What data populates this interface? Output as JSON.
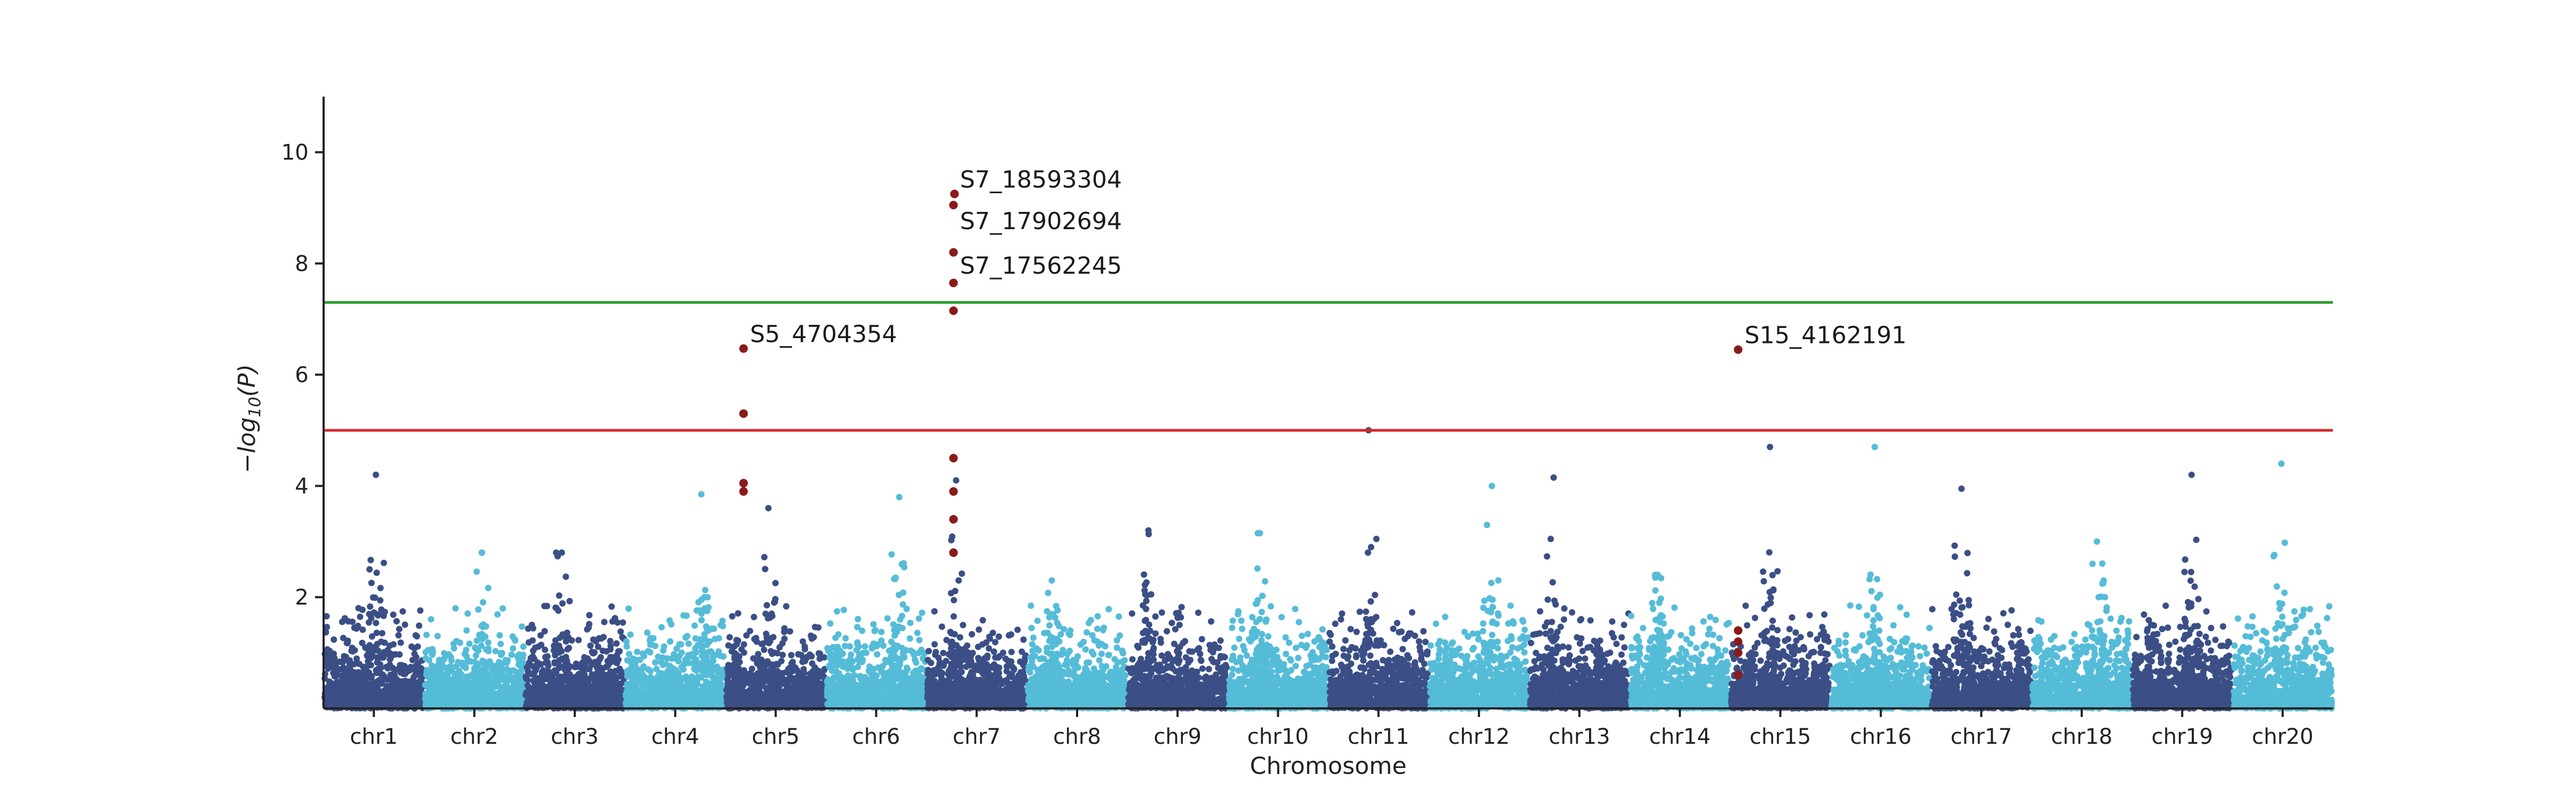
{
  "chart_data": {
    "type": "scatter",
    "subtype": "manhattan",
    "title": "",
    "xlabel": "Chromosome",
    "ylabel": "−log10(P)",
    "ylabel_parts": {
      "minus": "−",
      "log": "log",
      "sub": "10",
      "arg": "(P)"
    },
    "ylim": [
      0,
      11
    ],
    "yticks": [
      2,
      4,
      6,
      8,
      10
    ],
    "grid": false,
    "chromosomes": [
      "chr1",
      "chr2",
      "chr3",
      "chr4",
      "chr5",
      "chr6",
      "chr7",
      "chr8",
      "chr9",
      "chr10",
      "chr11",
      "chr12",
      "chr13",
      "chr14",
      "chr15",
      "chr16",
      "chr17",
      "chr18",
      "chr19",
      "chr20"
    ],
    "thresholds": [
      {
        "value": 7.3,
        "color": "#2ca02c"
      },
      {
        "value": 5.0,
        "color": "#d62728"
      }
    ],
    "colors": {
      "dark": "#3b4f86",
      "light": "#55bcd8",
      "highlight": "#8b1a1a",
      "axis": "#222222"
    },
    "peaks": [
      {
        "chr": 1,
        "ymax": 4.2,
        "highlight": false
      },
      {
        "chr": 2,
        "ymax": 2.8,
        "highlight": false
      },
      {
        "chr": 3,
        "ymax": 2.8,
        "highlight": false
      },
      {
        "chr": 4,
        "ymax": 3.85,
        "highlight": false
      },
      {
        "chr": 5,
        "ymax": 3.6,
        "highlight": false
      },
      {
        "chr": 6,
        "ymax": 3.8,
        "highlight": false
      },
      {
        "chr": 7,
        "ymax": 4.1,
        "highlight": false
      },
      {
        "chr": 8,
        "ymax": 2.3,
        "highlight": false
      },
      {
        "chr": 9,
        "ymax": 3.2,
        "highlight": false
      },
      {
        "chr": 10,
        "ymax": 3.15,
        "highlight": false
      },
      {
        "chr": 11,
        "ymax": 5.0,
        "highlight": false
      },
      {
        "chr": 12,
        "ymax": 4.0,
        "highlight": false
      },
      {
        "chr": 13,
        "ymax": 4.15,
        "highlight": false
      },
      {
        "chr": 14,
        "ymax": 2.4,
        "highlight": false
      },
      {
        "chr": 15,
        "ymax": 4.7,
        "highlight": false
      },
      {
        "chr": 16,
        "ymax": 4.7,
        "highlight": false
      },
      {
        "chr": 17,
        "ymax": 3.95,
        "highlight": false
      },
      {
        "chr": 18,
        "ymax": 3.0,
        "highlight": false
      },
      {
        "chr": 19,
        "ymax": 4.2,
        "highlight": false
      },
      {
        "chr": 20,
        "ymax": 4.4,
        "highlight": false
      }
    ],
    "highlighted_points": [
      {
        "chr": 5,
        "pos": 0.18,
        "y": 6.47
      },
      {
        "chr": 5,
        "pos": 0.18,
        "y": 5.3
      },
      {
        "chr": 5,
        "pos": 0.18,
        "y": 4.05
      },
      {
        "chr": 5,
        "pos": 0.18,
        "y": 3.9
      },
      {
        "chr": 7,
        "pos": 0.28,
        "y": 9.25
      },
      {
        "chr": 7,
        "pos": 0.27,
        "y": 9.05
      },
      {
        "chr": 7,
        "pos": 0.27,
        "y": 8.2
      },
      {
        "chr": 7,
        "pos": 0.27,
        "y": 7.65
      },
      {
        "chr": 7,
        "pos": 0.27,
        "y": 7.15
      },
      {
        "chr": 7,
        "pos": 0.27,
        "y": 4.5
      },
      {
        "chr": 7,
        "pos": 0.27,
        "y": 3.9
      },
      {
        "chr": 7,
        "pos": 0.27,
        "y": 3.4
      },
      {
        "chr": 7,
        "pos": 0.27,
        "y": 2.8
      },
      {
        "chr": 15,
        "pos": 0.08,
        "y": 6.45
      },
      {
        "chr": 15,
        "pos": 0.08,
        "y": 1.4
      },
      {
        "chr": 15,
        "pos": 0.08,
        "y": 1.2
      },
      {
        "chr": 15,
        "pos": 0.08,
        "y": 1.0
      },
      {
        "chr": 15,
        "pos": 0.08,
        "y": 0.6
      }
    ],
    "annotations": [
      {
        "text": "S7_18593304",
        "chr": 7,
        "pos": 0.27,
        "y": 9.25
      },
      {
        "text": "S7_17902694",
        "chr": 7,
        "pos": 0.27,
        "y": 8.5
      },
      {
        "text": "S7_17562245",
        "chr": 7,
        "pos": 0.27,
        "y": 7.7
      },
      {
        "text": "S5_4704354",
        "chr": 5,
        "pos": 0.18,
        "y": 6.47
      },
      {
        "text": "S15_4162191",
        "chr": 15,
        "pos": 0.08,
        "y": 6.45
      }
    ]
  }
}
